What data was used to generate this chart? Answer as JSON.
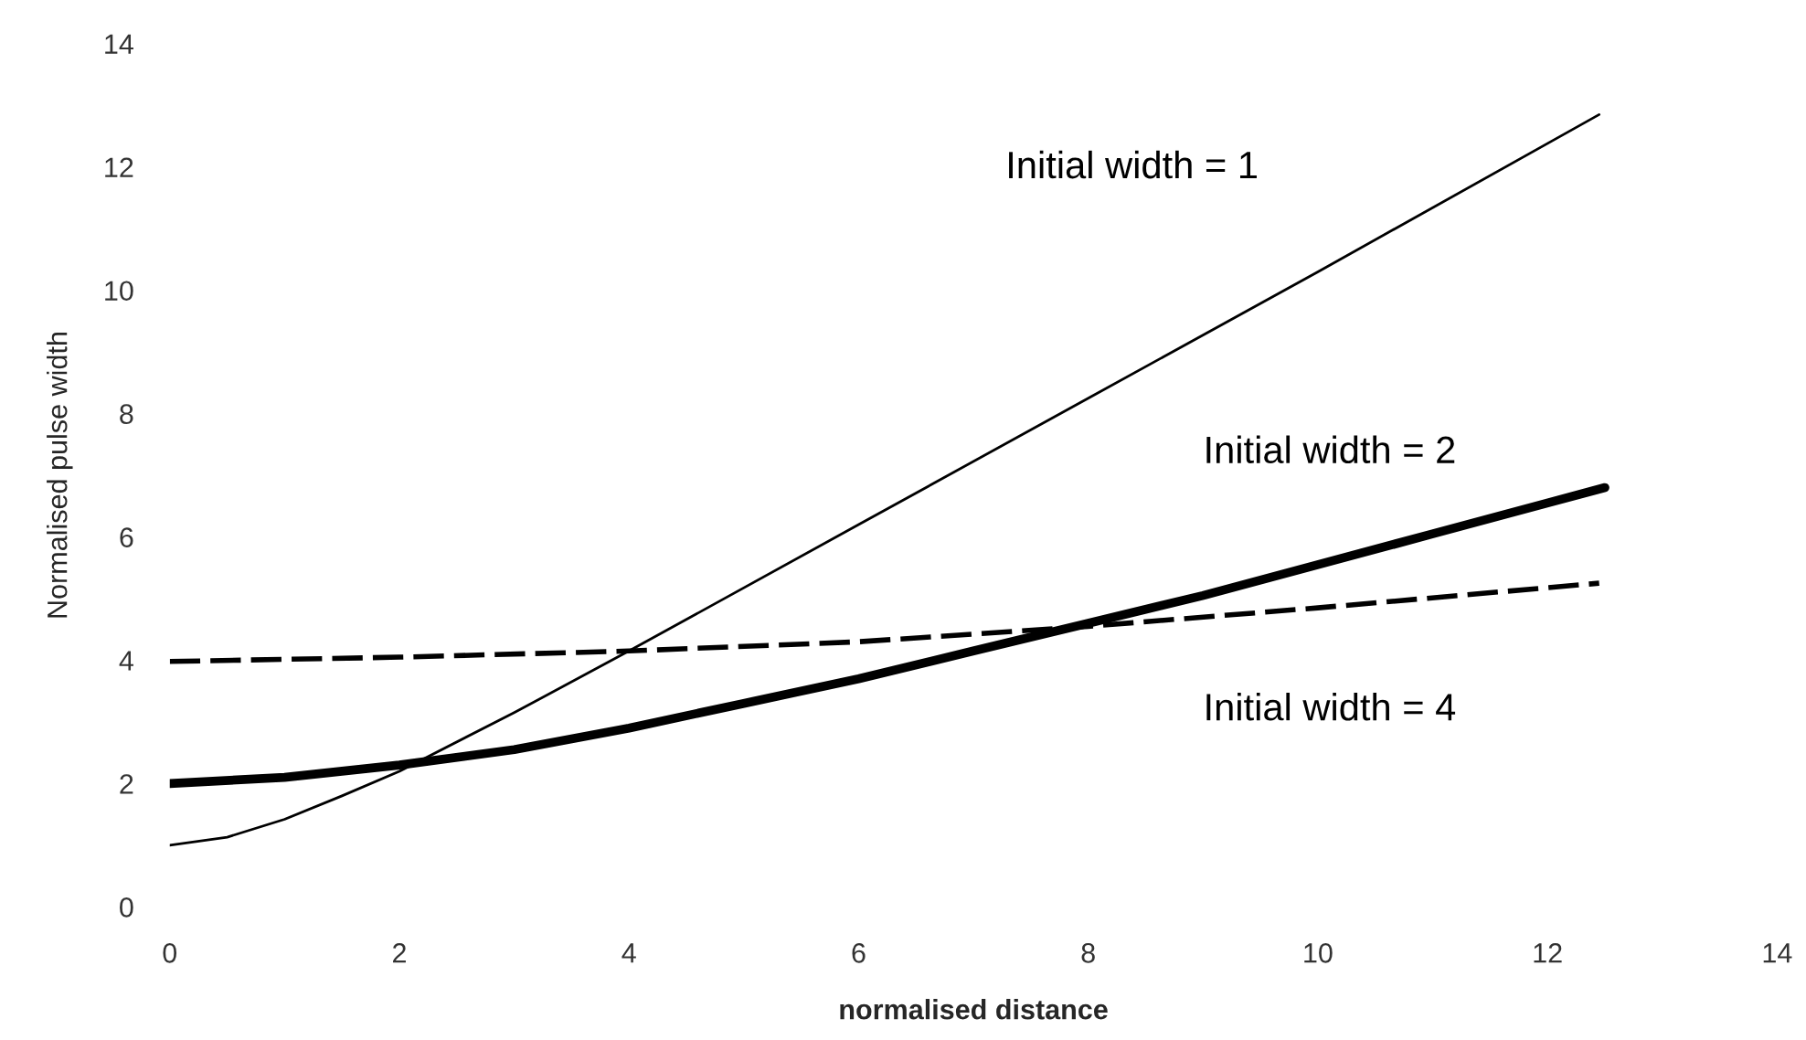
{
  "chart_data": {
    "type": "line",
    "xlabel": "normalised distance",
    "ylabel": "Normalised pulse width",
    "xlim": [
      0,
      14
    ],
    "ylim": [
      0,
      14
    ],
    "xticks": [
      0,
      2,
      4,
      6,
      8,
      10,
      12,
      14
    ],
    "yticks": [
      0,
      2,
      4,
      6,
      8,
      10,
      12,
      14
    ],
    "grid": false,
    "legend": false,
    "series": [
      {
        "name": "Initial width = 1",
        "color": "#000000",
        "line_style": "solid",
        "x": [
          0,
          0.5,
          1,
          1.5,
          2,
          3,
          4,
          6,
          8,
          10,
          12.45
        ],
        "values": [
          1.0,
          1.13,
          1.42,
          1.8,
          2.2,
          3.15,
          4.15,
          6.2,
          8.25,
          10.3,
          12.85
        ]
      },
      {
        "name": "Initial width = 2",
        "color": "#000000",
        "line_style": "solid",
        "x": [
          0,
          1,
          2,
          3,
          4,
          5,
          6,
          7,
          8,
          9,
          10,
          11,
          12,
          12.5
        ],
        "values": [
          2.0,
          2.1,
          2.3,
          2.55,
          2.9,
          3.3,
          3.7,
          4.15,
          4.6,
          5.05,
          5.55,
          6.05,
          6.55,
          6.8
        ]
      },
      {
        "name": "Initial width = 4",
        "color": "#000000",
        "line_style": "dashed",
        "x": [
          0,
          2,
          4,
          6,
          8,
          10,
          12.45
        ],
        "values": [
          3.98,
          4.05,
          4.15,
          4.3,
          4.55,
          4.85,
          5.25
        ]
      }
    ]
  }
}
